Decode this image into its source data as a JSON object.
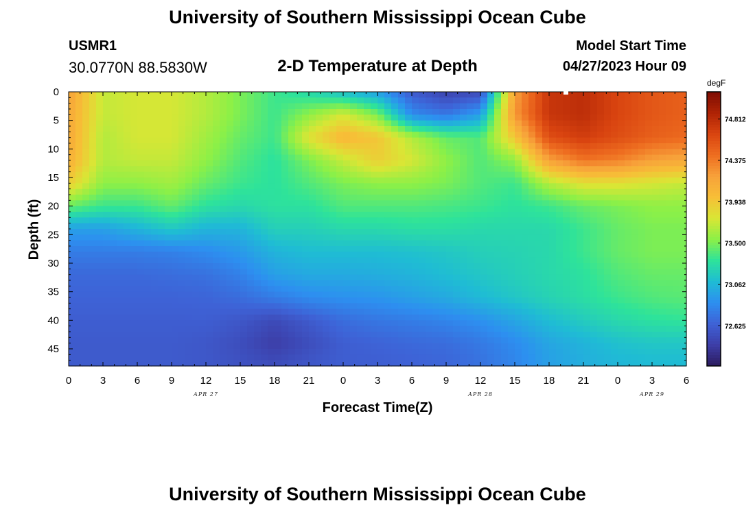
{
  "header": {
    "title": "University of Southern Mississippi Ocean Cube",
    "station_id": "USMR1",
    "coordinates": "30.0770N  88.5830W",
    "plot_title": "2-D Temperature at Depth",
    "model_start_label": "Model Start Time",
    "model_start_value": "04/27/2023 Hour 09"
  },
  "footer": {
    "title": "University of Southern Mississippi Ocean Cube"
  },
  "colors": {
    "scale": [
      "#2b1b5e",
      "#3d3ea8",
      "#3e62d6",
      "#2d8ff0",
      "#1fbcd4",
      "#2ee39a",
      "#8cf047",
      "#d9e635",
      "#f7bf37",
      "#f7a13a",
      "#ee6d20",
      "#d94410",
      "#ae2305",
      "#7f0d03"
    ],
    "text": "#000000",
    "background": "#ffffff"
  },
  "chart_data": {
    "type": "heatmap",
    "title": "2-D Temperature at Depth",
    "xlabel": "Forecast Time(Z)",
    "ylabel": "Depth (ft)",
    "x_tick_labels": [
      "0",
      "3",
      "6",
      "9",
      "12",
      "15",
      "18",
      "21",
      "0",
      "3",
      "6",
      "9",
      "12",
      "15",
      "18",
      "21",
      "0",
      "3",
      "6"
    ],
    "y_ticks": [
      0,
      5,
      10,
      15,
      20,
      25,
      30,
      35,
      40,
      45
    ],
    "ylim": [
      0,
      48
    ],
    "x_range_hours": [
      0,
      54
    ],
    "date_labels": [
      {
        "label": "APR 27",
        "hour": 12
      },
      {
        "label": "APR 28",
        "hour": 36
      },
      {
        "label": "APR 29",
        "hour": 51
      }
    ],
    "colorbar": {
      "unit": "degF",
      "ticks": [
        74.812,
        74.375,
        73.938,
        73.5,
        73.062,
        72.625
      ],
      "range": [
        72.2,
        75.1
      ]
    },
    "depths": [
      0,
      4,
      8,
      12,
      16,
      20,
      24,
      28,
      32,
      36,
      40,
      44,
      48
    ],
    "hours": [
      0,
      3,
      6,
      9,
      12,
      15,
      18,
      21,
      24,
      27,
      30,
      33,
      36,
      39,
      42,
      45,
      48,
      51,
      54
    ],
    "values": [
      [
        74.2,
        73.7,
        73.75,
        73.75,
        73.65,
        73.5,
        73.35,
        73.25,
        73.1,
        72.95,
        72.6,
        72.45,
        72.5,
        74.2,
        74.75,
        74.8,
        74.65,
        74.55,
        74.5
      ],
      [
        74.15,
        73.7,
        73.75,
        73.75,
        73.65,
        73.5,
        73.35,
        73.55,
        73.75,
        73.5,
        72.85,
        72.75,
        72.95,
        74.25,
        74.75,
        74.8,
        74.65,
        74.55,
        74.5
      ],
      [
        74.15,
        73.65,
        73.75,
        73.75,
        73.6,
        73.45,
        73.35,
        73.8,
        74.05,
        73.95,
        73.65,
        73.45,
        73.4,
        73.95,
        74.6,
        74.7,
        74.6,
        74.5,
        74.45
      ],
      [
        74.1,
        73.65,
        73.7,
        73.7,
        73.55,
        73.4,
        73.3,
        73.5,
        73.7,
        73.9,
        73.75,
        73.55,
        73.4,
        73.55,
        74.2,
        74.4,
        74.35,
        74.2,
        74.15
      ],
      [
        73.9,
        73.55,
        73.55,
        73.6,
        73.45,
        73.35,
        73.3,
        73.4,
        73.5,
        73.55,
        73.55,
        73.5,
        73.4,
        73.35,
        73.65,
        73.8,
        73.8,
        73.75,
        73.7
      ],
      [
        73.45,
        73.35,
        73.35,
        73.45,
        73.3,
        73.25,
        73.3,
        73.3,
        73.4,
        73.4,
        73.4,
        73.38,
        73.35,
        73.3,
        73.35,
        73.45,
        73.5,
        73.55,
        73.55
      ],
      [
        72.95,
        72.95,
        73.05,
        73.15,
        73.05,
        73.05,
        73.2,
        73.2,
        73.25,
        73.25,
        73.28,
        73.28,
        73.25,
        73.25,
        73.25,
        73.35,
        73.45,
        73.5,
        73.5
      ],
      [
        72.78,
        72.78,
        72.78,
        72.8,
        72.85,
        72.92,
        73.05,
        73.1,
        73.1,
        73.1,
        73.12,
        73.15,
        73.2,
        73.22,
        73.25,
        73.35,
        73.45,
        73.5,
        73.5
      ],
      [
        72.68,
        72.68,
        72.68,
        72.7,
        72.72,
        72.8,
        72.95,
        73.0,
        73.0,
        73.02,
        73.05,
        73.1,
        73.15,
        73.2,
        73.25,
        73.3,
        73.4,
        73.45,
        73.45
      ],
      [
        72.65,
        72.65,
        72.65,
        72.65,
        72.66,
        72.7,
        72.78,
        72.85,
        72.88,
        72.9,
        72.95,
        73.0,
        73.08,
        73.15,
        73.22,
        73.28,
        73.35,
        73.4,
        73.42
      ],
      [
        72.62,
        72.62,
        72.62,
        72.62,
        72.62,
        72.58,
        72.5,
        72.6,
        72.7,
        72.75,
        72.78,
        72.82,
        72.88,
        72.98,
        73.1,
        73.18,
        73.25,
        73.3,
        73.32
      ],
      [
        72.6,
        72.6,
        72.6,
        72.6,
        72.58,
        72.52,
        72.42,
        72.52,
        72.62,
        72.65,
        72.68,
        72.7,
        72.76,
        72.85,
        72.98,
        73.05,
        73.12,
        73.15,
        73.15
      ],
      [
        72.6,
        72.6,
        72.6,
        72.6,
        72.58,
        72.55,
        72.52,
        72.58,
        72.62,
        72.62,
        72.64,
        72.66,
        72.72,
        72.82,
        72.95,
        73.02,
        73.06,
        73.08,
        73.08
      ]
    ]
  }
}
